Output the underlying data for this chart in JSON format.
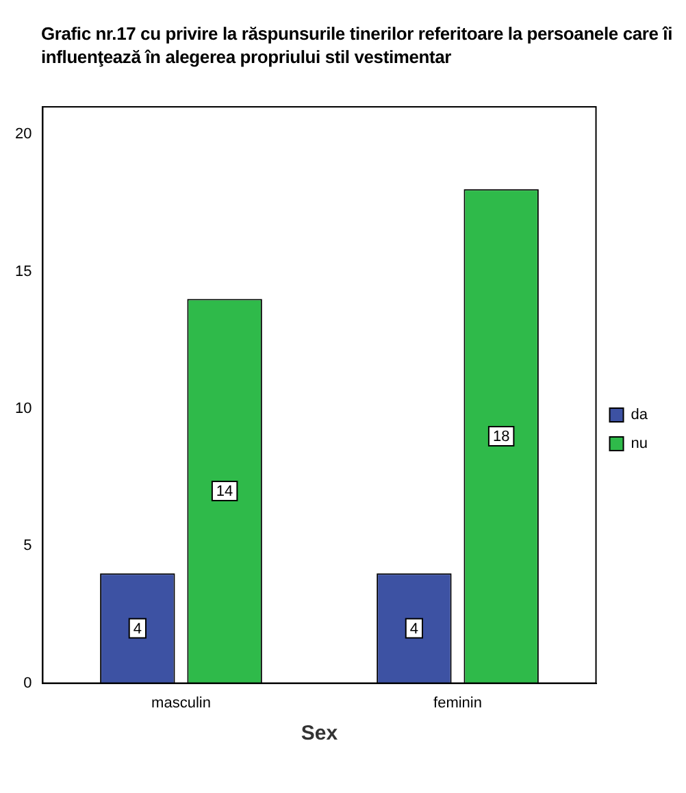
{
  "chart_data": {
    "type": "bar",
    "title": "Grafic nr.17 cu privire la răspunsurile tinerilor referitoare la persoanele care îi influenţează în alegerea propriului stil vestimentar",
    "xlabel": "Sex",
    "categories": [
      "masculin",
      "feminin"
    ],
    "series": [
      {
        "name": "da",
        "color": "#3d52a3",
        "values": [
          4,
          4
        ]
      },
      {
        "name": "nu",
        "color": "#2fba4a",
        "values": [
          14,
          18
        ]
      }
    ],
    "ylim": [
      0,
      21
    ],
    "yticks": [
      0,
      5,
      10,
      15,
      20
    ],
    "grid": false,
    "legend": "right",
    "data_labels": true
  }
}
